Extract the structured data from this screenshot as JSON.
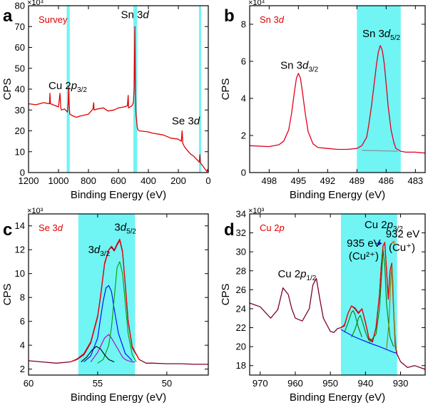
{
  "chart_data": [
    {
      "panel": "a",
      "type": "line",
      "tag": "Survey",
      "xlabel": "Binding Energy (eV)",
      "ylabel": "CPS",
      "multiplier": "×10⁴",
      "xlim": [
        1200,
        0
      ],
      "ylim": [
        0,
        80
      ],
      "xticks": [
        1200,
        1000,
        800,
        600,
        400,
        200,
        0
      ],
      "yticks": [
        0,
        10,
        20,
        30,
        40,
        50,
        60,
        70,
        80
      ],
      "highlights": [
        [
          945,
          925
        ],
        [
          500,
          475
        ],
        [
          62,
          48
        ]
      ],
      "annotations": [
        {
          "id": "cu",
          "main": "Cu 2",
          "ital": "p",
          "sub": "3/2",
          "x": 938,
          "y": 40
        },
        {
          "id": "sn",
          "main": "Sn 3",
          "ital": "d",
          "sub": "",
          "x": 490,
          "y": 74
        },
        {
          "id": "se",
          "main": "Se 3",
          "ital": "d",
          "sub": "",
          "x": 150,
          "y": 23
        }
      ],
      "series": [
        {
          "color": "#e00000",
          "x": [
            1200,
            1150,
            1100,
            1060,
            1057,
            1054,
            1000,
            990,
            985,
            980,
            960,
            940,
            935,
            932,
            929,
            925,
            900,
            880,
            860,
            800,
            770,
            765,
            762,
            740,
            700,
            680,
            670,
            630,
            600,
            560,
            540,
            535,
            532,
            510,
            500,
            495,
            490,
            487,
            486,
            485,
            484,
            482,
            480,
            475,
            470,
            460,
            400,
            380,
            300,
            250,
            200,
            180,
            175,
            170,
            160,
            150,
            120,
            100,
            80,
            60,
            56,
            54,
            52,
            40,
            30,
            20,
            10,
            5,
            0
          ],
          "y": [
            33,
            32.5,
            33.5,
            33,
            38,
            33,
            31.5,
            38,
            31,
            30,
            30.5,
            29,
            34,
            41,
            33,
            28,
            27,
            26.5,
            27,
            28,
            30.5,
            33.5,
            30,
            30.5,
            31,
            30,
            29.5,
            30,
            31,
            31.5,
            32,
            37,
            31,
            32,
            33.5,
            41,
            70,
            43,
            36,
            34,
            30,
            27,
            26,
            22,
            20.5,
            20,
            19.5,
            19,
            18,
            16.5,
            16,
            15,
            20,
            14,
            12.5,
            11.5,
            9,
            8,
            6.5,
            5,
            8.5,
            5.5,
            4.5,
            3.5,
            2.5,
            1.5,
            0.5,
            1.5,
            0
          ]
        }
      ]
    },
    {
      "panel": "b",
      "type": "line",
      "tag": "Sn 3d",
      "xlabel": "Binding Energy (eV)",
      "ylabel": "CPS",
      "multiplier": "×10⁴",
      "xlim": [
        500,
        482
      ],
      "ylim": [
        0,
        9
      ],
      "xticks": [
        498,
        495,
        492,
        489,
        486,
        483
      ],
      "yticks": [
        0,
        2,
        4,
        6,
        8
      ],
      "highlights": [
        [
          489,
          484.5
        ]
      ],
      "annotations": [
        {
          "id": "d32",
          "main": "Sn 3",
          "ital": "d",
          "sub": "3/2",
          "x": 494.9,
          "y": 5.6
        },
        {
          "id": "d52",
          "main": "Sn 3",
          "ital": "d",
          "sub": "5/2",
          "x": 486.5,
          "y": 7.3
        }
      ],
      "series": [
        {
          "color": "#e00020",
          "x": [
            500,
            498,
            497,
            496.5,
            496,
            495.7,
            495.4,
            495.2,
            495,
            494.8,
            494.6,
            494.3,
            494,
            493.5,
            493,
            492,
            491,
            490,
            489,
            488.5,
            488,
            487.8,
            487.5,
            487.2,
            487,
            486.8,
            486.6,
            486.4,
            486.2,
            486,
            485.8,
            485.5,
            485.2,
            485,
            484.5,
            484,
            483,
            482
          ],
          "y": [
            1.45,
            1.4,
            1.5,
            1.7,
            2.3,
            3.2,
            4.4,
            5.1,
            5.35,
            5.1,
            4.4,
            3.2,
            2.2,
            1.55,
            1.35,
            1.3,
            1.25,
            1.25,
            1.3,
            1.45,
            1.9,
            2.5,
            3.6,
            4.9,
            5.8,
            6.5,
            6.85,
            6.6,
            5.9,
            4.8,
            3.6,
            2.3,
            1.6,
            1.3,
            1.15,
            1.1,
            1.1,
            1.05
          ]
        },
        {
          "color": "#888888",
          "x": [
            488.5,
            484.8
          ],
          "y": [
            1.2,
            1.15
          ]
        }
      ]
    },
    {
      "panel": "c",
      "type": "line",
      "tag": "Se 3d",
      "xlabel": "Binding Energy (eV)",
      "ylabel": "CPS",
      "multiplier": "×10³",
      "xlim": [
        60,
        47
      ],
      "ylim": [
        1.5,
        15
      ],
      "xticks": [
        60,
        55,
        50
      ],
      "yticks": [
        2,
        4,
        6,
        8,
        10,
        12,
        14
      ],
      "highlights": [
        [
          56.4,
          52.3
        ]
      ],
      "annotations": [
        {
          "id": "d32",
          "main": "3",
          "ital": "d",
          "sub": "3/2",
          "x": 54.9,
          "y": 11.7
        },
        {
          "id": "d52",
          "main": "3",
          "ital": "d",
          "sub": "5/2",
          "x": 53.0,
          "y": 13.6
        }
      ],
      "series": [
        {
          "color": "#800030",
          "x": [
            60,
            59,
            58,
            57,
            56.5,
            56,
            55.5,
            55,
            54.8,
            54.5,
            54.2,
            54,
            53.8,
            53.6,
            53.4,
            53.2,
            53,
            52.8,
            52.5,
            52,
            51.5,
            51,
            50,
            49,
            48,
            47
          ],
          "y": [
            2.7,
            2.6,
            2.5,
            2.6,
            2.8,
            3.2,
            4.2,
            6.4,
            8.0,
            10.8,
            12.0,
            12.2,
            11.9,
            12.4,
            12.8,
            11.8,
            9.0,
            6.0,
            3.8,
            2.8,
            2.5,
            2.5,
            2.45,
            2.45,
            2.4,
            2.4
          ]
        },
        {
          "color": "#ff0000",
          "x": [
            57,
            56.5,
            56,
            55.5,
            55,
            54.8,
            54.5,
            54.2,
            54,
            53.8,
            53.6,
            53.4,
            53.2,
            53,
            52.8,
            52.5,
            52
          ],
          "y": [
            2.6,
            2.85,
            3.3,
            4.3,
            6.5,
            8.1,
            10.9,
            12.0,
            12.3,
            12.0,
            12.5,
            12.9,
            11.9,
            9.1,
            6.1,
            3.9,
            2.8
          ]
        },
        {
          "color": "#0000ff",
          "x": [
            56,
            55.5,
            55,
            54.8,
            54.6,
            54.4,
            54.2,
            54,
            53.8,
            53.5,
            53,
            52.5
          ],
          "y": [
            2.6,
            3.1,
            4.6,
            6.2,
            7.7,
            8.8,
            9.0,
            8.5,
            7.0,
            5.0,
            3.3,
            2.7
          ]
        },
        {
          "color": "#b000b0",
          "x": [
            55.5,
            55,
            54.5,
            54.2,
            54,
            53.6,
            53.2,
            53,
            52.8,
            52.5,
            52.3
          ],
          "y": [
            2.6,
            3.4,
            4.6,
            4.9,
            4.6,
            3.8,
            3.0,
            2.8,
            2.7,
            2.6,
            2.6
          ]
        },
        {
          "color": "#00a000",
          "x": [
            55,
            54.6,
            54.2,
            54,
            53.8,
            53.6,
            53.4,
            53.2,
            53,
            52.8,
            52.5,
            52.2
          ],
          "y": [
            2.5,
            2.8,
            4.0,
            5.5,
            8.0,
            10.5,
            11.0,
            10.0,
            7.5,
            5.0,
            3.2,
            2.6
          ]
        },
        {
          "color": "#000000",
          "x": [
            56.2,
            55.8,
            55.4,
            55.1,
            54.8,
            54.5,
            54.2,
            53.8
          ],
          "y": [
            2.6,
            3.0,
            3.6,
            3.9,
            3.7,
            3.2,
            2.8,
            2.6
          ]
        }
      ]
    },
    {
      "panel": "d",
      "type": "line",
      "tag": "Cu 2p",
      "xlabel": "Binding Energy (eV)",
      "ylabel": "CPS",
      "multiplier": "×10³",
      "xlim": [
        973,
        923
      ],
      "ylim": [
        17,
        34
      ],
      "xticks": [
        970,
        960,
        950,
        940,
        930
      ],
      "yticks": [
        18,
        20,
        22,
        24,
        26,
        28,
        30,
        32,
        34
      ],
      "highlights": [
        [
          947,
          931
        ]
      ],
      "annotations": [
        {
          "id": "p12",
          "main": "Cu 2",
          "ital": "p",
          "sub": "1/2",
          "x": 959.5,
          "y": 27.3
        },
        {
          "id": "p32",
          "main": "Cu 2",
          "ital": "p",
          "sub": "3/2",
          "x": 934.8,
          "y": 32.5
        }
      ],
      "labels": {
        "cu2_ev": "935 eV",
        "cu2_ion": "(Cu²⁺)",
        "cu1_ev": "932 eV",
        "cu1_ion": "(Cu⁺)"
      },
      "series": [
        {
          "color": "#800030",
          "x": [
            973,
            970,
            967,
            965,
            963.5,
            962,
            961,
            960,
            958,
            956,
            955,
            954,
            953,
            952,
            951,
            950,
            949,
            948,
            947,
            946,
            945,
            944,
            943,
            942,
            941,
            940,
            939,
            938,
            937,
            936,
            935.5,
            935,
            934.5,
            934,
            933.5,
            933,
            932.5,
            932,
            931.5,
            931,
            930,
            928,
            926,
            923
          ],
          "y": [
            24.6,
            24.2,
            23.0,
            23.9,
            26.2,
            25.5,
            24.0,
            23.0,
            22.7,
            24.0,
            26.5,
            27.2,
            25.0,
            23.0,
            22.3,
            21.6,
            21.5,
            21.9,
            22.0,
            22.2,
            23.5,
            24.3,
            24.0,
            23.5,
            24.0,
            22.5,
            20.8,
            20.5,
            22.0,
            25.5,
            28.5,
            30.6,
            31.0,
            28.0,
            25.0,
            28.0,
            28.8,
            24.0,
            20.0,
            19.2,
            18.4,
            17.8,
            18.0,
            17.6
          ]
        },
        {
          "color": "#ff0000",
          "x": [
            947,
            946,
            945,
            944,
            943,
            942,
            941,
            940,
            939,
            938,
            937,
            936,
            935.5,
            935,
            934.5,
            934,
            933.5,
            933,
            932.5,
            932,
            931.5,
            931
          ],
          "y": [
            22.0,
            22.3,
            23.5,
            24.3,
            24.1,
            23.6,
            24.0,
            22.6,
            20.9,
            20.6,
            22.0,
            25.5,
            28.5,
            30.6,
            31.0,
            28.1,
            25.1,
            28.0,
            28.8,
            24.1,
            20.2,
            19.3
          ]
        },
        {
          "color": "#0000ff",
          "x": [
            947,
            943,
            939,
            936,
            934,
            932,
            931
          ],
          "y": [
            21.8,
            21.0,
            20.4,
            20.0,
            19.7,
            19.4,
            19.3
          ]
        },
        {
          "color": "#008000",
          "x": [
            946,
            945,
            944,
            943.5,
            943,
            942,
            941
          ],
          "y": [
            21.5,
            22.5,
            23.6,
            23.8,
            23.4,
            22.0,
            21.0
          ]
        },
        {
          "color": "#008000",
          "x": [
            944,
            943,
            942,
            941.5,
            941,
            940,
            939
          ],
          "y": [
            21.0,
            21.8,
            23.0,
            23.3,
            22.8,
            21.5,
            20.6
          ]
        },
        {
          "color": "#008000",
          "x": [
            939,
            937,
            936,
            935.3,
            935,
            934.5,
            934,
            933,
            932
          ],
          "y": [
            20.4,
            21.3,
            24.0,
            28.2,
            30.2,
            28.6,
            24.5,
            21.0,
            20.0
          ]
        },
        {
          "color": "#808000",
          "x": [
            934,
            933.3,
            932.8,
            932.5,
            932.2,
            931.8,
            931.2
          ],
          "y": [
            19.8,
            22.5,
            27.0,
            28.5,
            27.0,
            22.0,
            19.6
          ]
        }
      ]
    }
  ]
}
